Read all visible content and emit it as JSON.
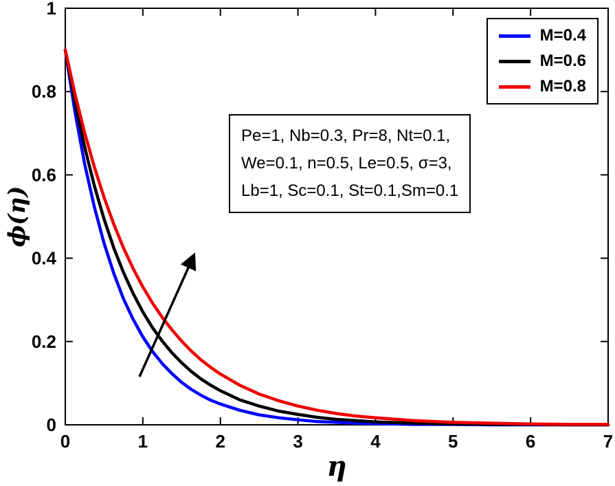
{
  "chart_data": {
    "type": "line",
    "title": "",
    "xlabel": "η",
    "ylabel": "ϕ(η)",
    "xlim": [
      0,
      7
    ],
    "ylim": [
      0,
      1
    ],
    "xticks": [
      "0",
      "1",
      "2",
      "3",
      "4",
      "5",
      "6",
      "7"
    ],
    "yticks": [
      "0",
      "0.2",
      "0.4",
      "0.6",
      "0.8",
      "1"
    ],
    "grid": false,
    "legend_position": "top-right",
    "series": [
      {
        "name": "M=0.4",
        "color": "#0000ff",
        "x": [
          0,
          0.125,
          0.25,
          0.375,
          0.5,
          0.625,
          0.75,
          0.875,
          1,
          1.125,
          1.25,
          1.375,
          1.5,
          1.625,
          1.75,
          1.875,
          2,
          2.25,
          2.5,
          2.75,
          3,
          3.25,
          3.5,
          3.75,
          4,
          4.5,
          5,
          5.5,
          6,
          6.5,
          7
        ],
        "y": [
          0.9,
          0.751,
          0.626,
          0.523,
          0.436,
          0.364,
          0.303,
          0.253,
          0.211,
          0.176,
          0.147,
          0.123,
          0.102,
          0.085,
          0.071,
          0.059,
          0.05,
          0.035,
          0.024,
          0.017,
          0.012,
          0.008,
          0.006,
          0.004,
          0.003,
          0.001,
          0.001,
          0,
          0,
          0,
          0
        ]
      },
      {
        "name": "M=0.6",
        "color": "#000000",
        "x": [
          0,
          0.125,
          0.25,
          0.375,
          0.5,
          0.625,
          0.75,
          0.875,
          1,
          1.125,
          1.25,
          1.375,
          1.5,
          1.625,
          1.75,
          1.875,
          2,
          2.25,
          2.5,
          2.75,
          3,
          3.25,
          3.5,
          3.75,
          4,
          4.5,
          5,
          5.5,
          6,
          6.5,
          7
        ],
        "y": [
          0.9,
          0.775,
          0.667,
          0.574,
          0.494,
          0.425,
          0.366,
          0.315,
          0.271,
          0.233,
          0.201,
          0.173,
          0.149,
          0.128,
          0.11,
          0.095,
          0.082,
          0.06,
          0.045,
          0.033,
          0.025,
          0.018,
          0.013,
          0.01,
          0.007,
          0.004,
          0.002,
          0.001,
          0.001,
          0,
          0
        ]
      },
      {
        "name": "M=0.8",
        "color": "#ee0000",
        "x": [
          0,
          0.125,
          0.25,
          0.375,
          0.5,
          0.625,
          0.75,
          0.875,
          1,
          1.125,
          1.25,
          1.375,
          1.5,
          1.625,
          1.75,
          1.875,
          2,
          2.25,
          2.5,
          2.75,
          3,
          3.25,
          3.5,
          3.75,
          4,
          4.5,
          5,
          5.5,
          6,
          6.5,
          7
        ],
        "y": [
          0.9,
          0.794,
          0.701,
          0.619,
          0.546,
          0.482,
          0.425,
          0.375,
          0.331,
          0.292,
          0.258,
          0.228,
          0.201,
          0.177,
          0.156,
          0.138,
          0.122,
          0.095,
          0.074,
          0.058,
          0.045,
          0.035,
          0.027,
          0.021,
          0.017,
          0.01,
          0.006,
          0.004,
          0.002,
          0.001,
          0.001
        ]
      }
    ]
  },
  "legend": {
    "entries": [
      {
        "label": "M=0.4",
        "color": "#0000ff"
      },
      {
        "label": "M=0.6",
        "color": "#000000"
      },
      {
        "label": "M=0.8",
        "color": "#ee0000"
      }
    ]
  },
  "annotation_box": {
    "lines": [
      "Pe=1, Nb=0.3, Pr=8, Nt=0.1,",
      "We=0.1, n=0.5, Le=0.5, σ=3,",
      "Lb=1, Sc=0.1, St=0.1,Sm=0.1"
    ]
  }
}
